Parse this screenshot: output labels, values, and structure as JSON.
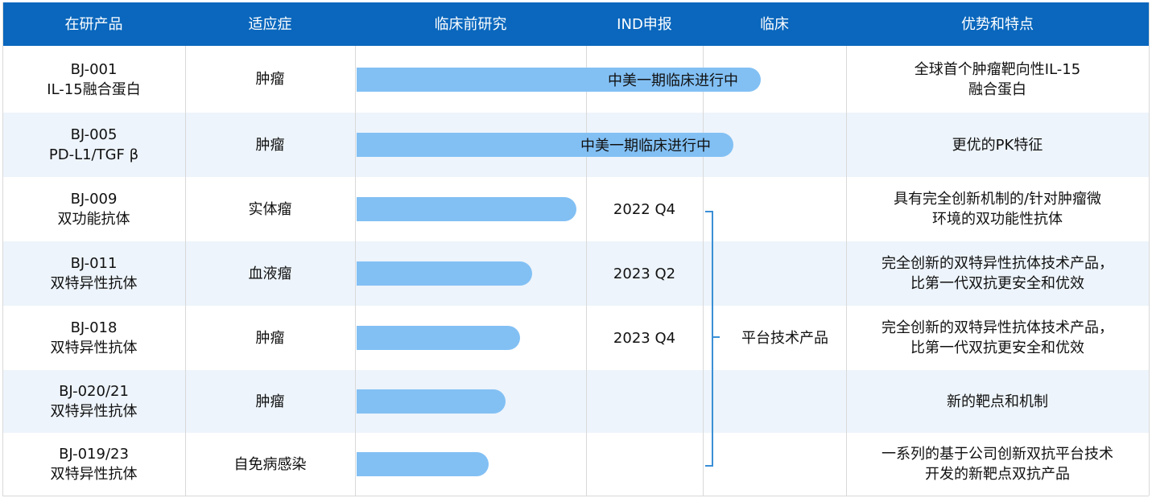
{
  "header": [
    "在研产品",
    "适应症",
    "临床前研究",
    "IND申报",
    "临床",
    "优势和特点"
  ],
  "rows": [
    {
      "product": [
        "BJ-001",
        "IL-15融合蛋白"
      ],
      "indication": "肿瘤",
      "bar_label": "中美一期临床进行中",
      "features": [
        "全球首个肿瘤靶向性IL-15",
        "融合蛋白"
      ]
    },
    {
      "product": [
        "BJ-005",
        "PD-L1/TGF β"
      ],
      "indication": "肿瘤",
      "bar_label": "中美一期临床进行中",
      "features": [
        "更优的PK特征"
      ]
    },
    {
      "product": [
        "BJ-009",
        "双功能抗体"
      ],
      "indication": "实体瘤",
      "ind": "2022 Q4",
      "features": [
        "具有完全创新机制的/针对肿瘤微",
        "环境的双功能性抗体"
      ]
    },
    {
      "product": [
        "BJ-011",
        "双特异性抗体"
      ],
      "indication": "血液瘤",
      "ind": "2023 Q2",
      "features": [
        "完全创新的双特异性抗体技术产品，",
        "比第一代双抗更安全和优效"
      ]
    },
    {
      "product": [
        "BJ-018",
        "双特异性抗体"
      ],
      "indication": "肿瘤",
      "ind": "2023 Q4",
      "features": [
        "完全创新的双特异性抗体技术产品，",
        "比第一代双抗更安全和优效"
      ]
    },
    {
      "product": [
        "BJ-020/21",
        "双特异性抗体"
      ],
      "indication": "肿瘤",
      "features": [
        "新的靶点和机制"
      ]
    },
    {
      "product": [
        "BJ-019/23",
        "双特异性抗体"
      ],
      "indication": "自免病感染",
      "features": [
        "一系列的基于公司创新双抗平台技术",
        "开发的新靶点双抗产品"
      ]
    }
  ],
  "platform_label": "平台技术产品"
}
